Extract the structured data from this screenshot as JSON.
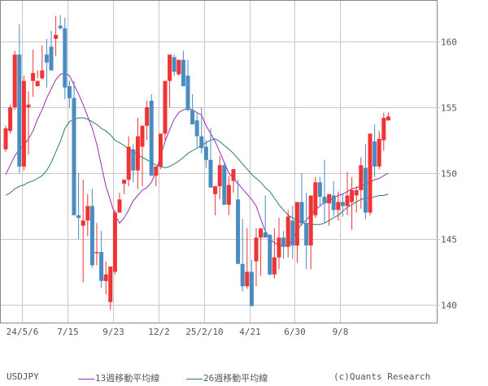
{
  "chart_data": {
    "type": "candlestick",
    "title": "USDJPY",
    "xlabel": "",
    "ylabel": "",
    "ylim": [
      138.5,
      163.3
    ],
    "y_ticks": [
      140,
      145,
      150,
      155,
      160
    ],
    "x_tick_labels": [
      "24/5/6",
      "7/15",
      "9/23",
      "12/2",
      "25/2/10",
      "4/21",
      "6/30",
      "9/8"
    ],
    "grid": true,
    "colors": {
      "up": "#f03434",
      "down": "#4a8bc0",
      "ma13": "#9b2bb8",
      "ma26": "#2a7a78",
      "grid": "#c8c8c8",
      "axis": "#888888"
    },
    "legend": [
      {
        "label": "13週移動平均線",
        "color": "#9b2bb8"
      },
      {
        "label": "26週移動平均線",
        "color": "#2a7a78"
      }
    ],
    "candles": [
      [
        151.8,
        153.6,
        151.6,
        153.4
      ],
      [
        153.2,
        155.2,
        153.0,
        155.0
      ],
      [
        155.0,
        159.3,
        154.8,
        159.0
      ],
      [
        159.0,
        161.3,
        150.0,
        150.5
      ],
      [
        150.5,
        157.4,
        150.2,
        157.0
      ],
      [
        155.0,
        156.2,
        151.4,
        155.2
      ],
      [
        157.0,
        159.4,
        155.8,
        157.6
      ],
      [
        156.6,
        157.8,
        157.2,
        157.0
      ],
      [
        157.2,
        159.7,
        157.1,
        157.8
      ],
      [
        159.0,
        160.2,
        156.5,
        158.4
      ],
      [
        159.6,
        160.8,
        158.0,
        157.8
      ],
      [
        160.2,
        161.9,
        158.9,
        160.5
      ],
      [
        161.2,
        162.0,
        160.9,
        161.0
      ],
      [
        161.0,
        161.8,
        155.6,
        156.5
      ],
      [
        156.6,
        157.0,
        155.0,
        155.7
      ],
      [
        155.7,
        157.0,
        148.0,
        146.8
      ],
      [
        146.8,
        150.0,
        145.0,
        146.6
      ],
      [
        146.0,
        149.5,
        141.7,
        146.4
      ],
      [
        146.4,
        148.4,
        145.2,
        147.5
      ],
      [
        147.5,
        148.8,
        142.8,
        143.0
      ],
      [
        144.0,
        146.2,
        143.0,
        144.0
      ],
      [
        144.0,
        145.6,
        141.3,
        141.8
      ],
      [
        141.8,
        143.3,
        140.8,
        142.3
      ],
      [
        140.2,
        142.0,
        139.6,
        142.9
      ],
      [
        142.5,
        147.2,
        142.3,
        147.0
      ],
      [
        147.0,
        148.5,
        147.0,
        148.0
      ],
      [
        149.2,
        149.2,
        148.4,
        149.5
      ],
      [
        149.5,
        152.8,
        149.0,
        152.0
      ],
      [
        151.8,
        152.2,
        149.3,
        150.2
      ],
      [
        150.2,
        154.2,
        148.8,
        152.8
      ],
      [
        152.0,
        152.8,
        149.0,
        153.6
      ],
      [
        153.6,
        155.5,
        152.5,
        155.0
      ],
      [
        155.5,
        156.0,
        149.8,
        149.8
      ],
      [
        149.8,
        150.3,
        149.0,
        150.5
      ],
      [
        150.5,
        152.0,
        150.3,
        153.0
      ],
      [
        153.0,
        156.0,
        152.5,
        157.0
      ],
      [
        157.0,
        157.8,
        155.0,
        159.0
      ],
      [
        158.8,
        159.0,
        157.4,
        157.7
      ],
      [
        157.5,
        158.4,
        157.4,
        158.6
      ],
      [
        158.6,
        159.3,
        156.8,
        156.6
      ],
      [
        157.4,
        158.6,
        154.7,
        154.8
      ],
      [
        154.8,
        156.0,
        154.1,
        153.7
      ],
      [
        154.0,
        154.6,
        152.0,
        152.8
      ],
      [
        152.8,
        155.0,
        151.5,
        151.9
      ],
      [
        152.0,
        152.5,
        150.4,
        151.0
      ],
      [
        151.0,
        153.4,
        150.4,
        148.9
      ],
      [
        148.4,
        148.7,
        146.8,
        149.0
      ],
      [
        149.0,
        151.3,
        148.0,
        150.6
      ],
      [
        150.6,
        150.8,
        147.8,
        147.6
      ],
      [
        147.6,
        149.8,
        146.8,
        149.1
      ],
      [
        149.4,
        150.3,
        148.5,
        150.3
      ],
      [
        148.0,
        149.5,
        143.2,
        143.1
      ],
      [
        143.1,
        146.5,
        141.0,
        141.4
      ],
      [
        141.4,
        145.8,
        141.2,
        142.5
      ],
      [
        142.5,
        143.4,
        139.9,
        139.9
      ],
      [
        143.3,
        145.8,
        141.4,
        145.1
      ],
      [
        145.1,
        145.6,
        142.2,
        145.8
      ],
      [
        145.5,
        148.3,
        145.2,
        145.1
      ],
      [
        145.3,
        145.4,
        142.2,
        142.3
      ],
      [
        142.3,
        145.8,
        142.0,
        143.6
      ],
      [
        143.6,
        146.6,
        142.7,
        145.1
      ],
      [
        145.1,
        145.6,
        143.5,
        144.4
      ],
      [
        144.4,
        147.2,
        143.6,
        146.7
      ],
      [
        146.4,
        147.5,
        143.5,
        144.5
      ],
      [
        144.5,
        147.4,
        143.2,
        147.8
      ],
      [
        147.8,
        150.0,
        146.0,
        146.2
      ],
      [
        146.2,
        148.5,
        142.7,
        144.5
      ],
      [
        144.5,
        147.0,
        142.7,
        148.3
      ],
      [
        146.8,
        149.7,
        146.6,
        149.3
      ],
      [
        149.3,
        149.7,
        147.5,
        148.2
      ],
      [
        148.2,
        151.0,
        146.2,
        147.7
      ],
      [
        147.7,
        148.3,
        146.0,
        148.4
      ],
      [
        148.3,
        149.4,
        146.7,
        147.2
      ],
      [
        147.2,
        148.6,
        146.4,
        147.8
      ],
      [
        147.8,
        148.4,
        146.7,
        147.5
      ],
      [
        147.5,
        150.1,
        146.8,
        148.3
      ],
      [
        147.8,
        149.7,
        145.7,
        148.7
      ],
      [
        148.3,
        149.0,
        147.0,
        148.7
      ],
      [
        148.7,
        151.2,
        147.3,
        150.6
      ],
      [
        150.4,
        152.2,
        146.5,
        147.0
      ],
      [
        147.0,
        152.8,
        146.8,
        153.0
      ],
      [
        152.4,
        153.7,
        149.7,
        150.5
      ],
      [
        150.5,
        153.2,
        150.3,
        152.6
      ],
      [
        152.5,
        154.6,
        151.7,
        154.2
      ],
      [
        154.0,
        154.6,
        154.0,
        154.3
      ]
    ],
    "ma13": [
      149.9,
      150.6,
      151.3,
      151.8,
      152.1,
      152.6,
      153.2,
      154.1,
      154.8,
      155.7,
      156.4,
      157.1,
      157.5,
      157.6,
      157.4,
      156.7,
      156.0,
      155.2,
      154.3,
      153.4,
      152.2,
      150.6,
      149.0,
      147.9,
      146.8,
      146.2,
      146.6,
      147.2,
      147.9,
      148.3,
      148.7,
      148.9,
      149.3,
      150.1,
      151.3,
      152.4,
      153.3,
      154.1,
      154.6,
      154.8,
      154.9,
      154.8,
      154.6,
      154.4,
      153.6,
      153.0,
      152.4,
      151.6,
      150.8,
      150.0,
      149.6,
      149.2,
      148.8,
      148.4,
      148.0,
      147.5,
      146.5,
      145.6,
      145.0,
      144.7,
      144.5,
      144.5,
      144.5,
      145.0,
      145.6,
      146.2,
      146.4,
      146.9,
      147.2,
      147.5,
      147.8,
      147.9,
      148.1,
      148.3,
      148.4,
      148.6,
      148.8,
      148.9,
      149.0,
      149.2,
      149.3,
      149.5,
      149.6,
      149.8,
      150.0
    ],
    "ma26": [
      148.3,
      148.5,
      148.8,
      149.0,
      149.1,
      149.3,
      149.4,
      149.6,
      149.8,
      150.2,
      150.8,
      151.6,
      152.4,
      153.4,
      153.9,
      154.1,
      154.2,
      154.2,
      154.1,
      153.9,
      153.7,
      153.4,
      153.2,
      152.9,
      152.5,
      152.3,
      152.1,
      151.8,
      151.6,
      151.4,
      151.2,
      151.0,
      150.8,
      150.6,
      150.5,
      150.4,
      150.5,
      150.7,
      150.9,
      151.2,
      151.5,
      151.7,
      151.9,
      152.1,
      152.3,
      152.5,
      152.6,
      152.4,
      152.1,
      151.8,
      151.5,
      151.1,
      150.7,
      150.3,
      149.9,
      149.6,
      149.3,
      148.9,
      148.6,
      148.1,
      147.6,
      147.2,
      146.8,
      146.6,
      146.4,
      146.2,
      146.2,
      146.1,
      146.1,
      146.1,
      146.2,
      146.4,
      146.6,
      146.8,
      147.1,
      147.4,
      147.6,
      147.8,
      148.0,
      148.1,
      148.1,
      148.2,
      148.3,
      148.3,
      148.4
    ]
  },
  "legend": {
    "symbol": "USDJPY",
    "ma13_label": "13週移動平均線",
    "ma26_label": "26週移動平均線",
    "copyright": "(c)Quants Research"
  }
}
